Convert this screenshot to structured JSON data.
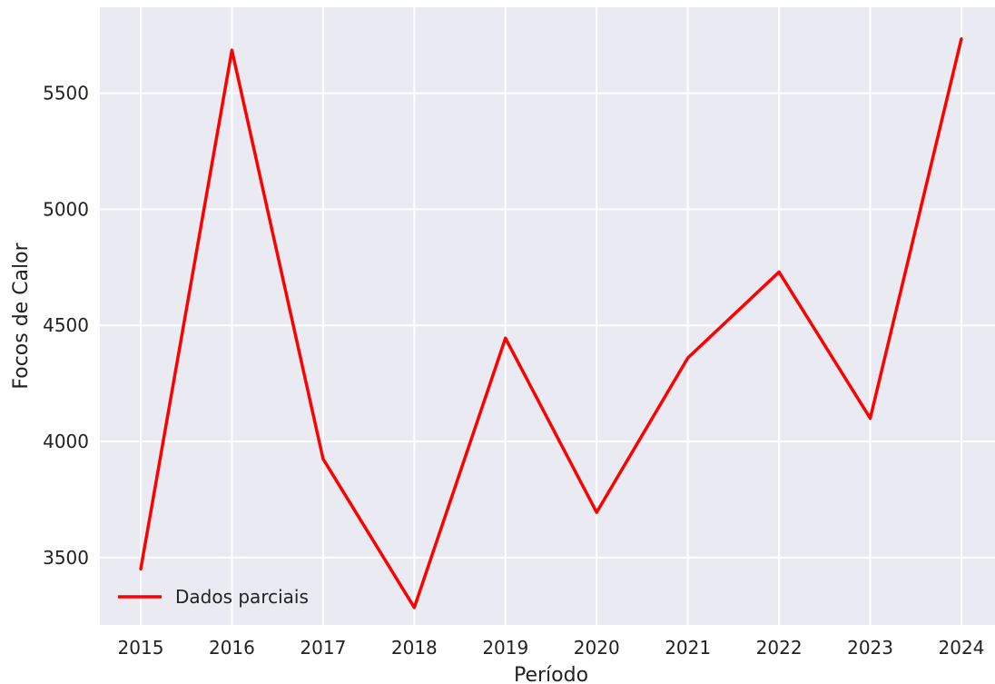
{
  "chart_data": {
    "type": "line",
    "title": "",
    "xlabel": "Período",
    "ylabel": "Focos de Calor",
    "x": [
      "2015",
      "2016",
      "2017",
      "2018",
      "2019",
      "2020",
      "2021",
      "2022",
      "2023",
      "2024"
    ],
    "series": [
      {
        "name": "Dados parciais",
        "color": "#ff0000",
        "values": [
          3450,
          5685,
          3925,
          3285,
          4445,
          3695,
          4360,
          4730,
          4100,
          5735
        ]
      }
    ],
    "yticks": [
      "3500",
      "4000",
      "4500",
      "5000",
      "5500"
    ],
    "ylim": [
      3210,
      5870
    ],
    "grid": true,
    "legend_position": "lower-left",
    "background_color": "#eaeaf2",
    "grid_color": "#ffffff"
  }
}
